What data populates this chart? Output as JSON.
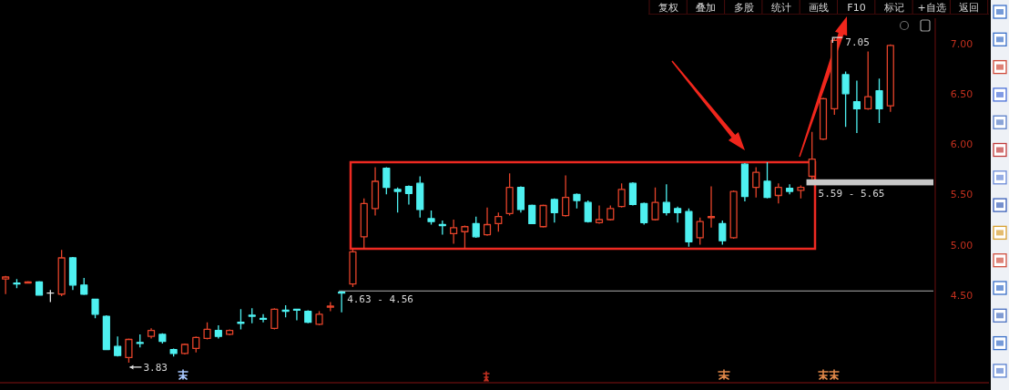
{
  "chart_data": {
    "type": "candlestick",
    "categories": [
      null,
      null,
      null,
      null,
      null,
      null,
      null,
      null,
      null,
      null,
      null,
      null,
      null,
      null,
      null,
      null,
      null,
      null,
      null,
      null,
      null,
      null,
      null,
      null,
      null,
      null,
      null,
      null,
      null,
      null,
      null,
      null,
      null,
      null,
      null,
      null,
      null,
      null,
      null,
      null,
      null,
      null,
      null,
      null,
      null,
      null,
      null,
      null,
      null,
      null,
      null,
      null,
      null,
      null,
      null,
      null,
      null,
      null,
      null,
      null,
      null,
      null,
      null,
      null,
      null,
      null,
      null,
      null,
      null,
      null,
      null,
      null,
      null,
      null,
      null,
      null,
      null,
      null,
      null,
      null
    ],
    "ohlc": [
      [
        4.66,
        4.69,
        4.51,
        4.68
      ],
      [
        4.62,
        4.66,
        4.57,
        4.61
      ],
      [
        4.62,
        4.64,
        4.62,
        4.63
      ],
      [
        4.63,
        4.64,
        4.5,
        4.5
      ],
      [
        4.52,
        4.55,
        4.43,
        4.52
      ],
      [
        4.51,
        4.95,
        4.49,
        4.87
      ],
      [
        4.87,
        4.88,
        4.55,
        4.6
      ],
      [
        4.6,
        4.67,
        4.5,
        4.51
      ],
      [
        4.46,
        4.46,
        4.27,
        4.31
      ],
      [
        4.29,
        4.3,
        3.96,
        3.96
      ],
      [
        3.99,
        4.09,
        3.89,
        3.9
      ],
      [
        3.88,
        4.07,
        3.83,
        4.06
      ],
      [
        4.03,
        4.11,
        3.98,
        4.02
      ],
      [
        4.09,
        4.17,
        4.07,
        4.15
      ],
      [
        4.11,
        4.12,
        4.02,
        4.04
      ],
      [
        3.96,
        3.97,
        3.89,
        3.92
      ],
      [
        3.92,
        4.02,
        3.91,
        4.01
      ],
      [
        3.97,
        4.09,
        3.93,
        4.08
      ],
      [
        4.07,
        4.23,
        4.06,
        4.16
      ],
      [
        4.15,
        4.2,
        4.07,
        4.09
      ],
      [
        4.11,
        4.16,
        4.1,
        4.15
      ],
      [
        4.23,
        4.36,
        4.16,
        4.22
      ],
      [
        4.3,
        4.37,
        4.22,
        4.29
      ],
      [
        4.27,
        4.31,
        4.23,
        4.26
      ],
      [
        4.17,
        4.37,
        4.16,
        4.36
      ],
      [
        4.35,
        4.4,
        4.28,
        4.34
      ],
      [
        4.36,
        4.36,
        4.25,
        4.35
      ],
      [
        4.34,
        4.35,
        4.22,
        4.23
      ],
      [
        4.21,
        4.34,
        4.2,
        4.31
      ],
      [
        4.38,
        4.43,
        4.34,
        4.39
      ],
      [
        4.53,
        4.54,
        4.33,
        4.52
      ],
      [
        4.61,
        4.96,
        4.58,
        4.93
      ],
      [
        5.08,
        5.46,
        4.96,
        5.41
      ],
      [
        5.36,
        5.77,
        5.29,
        5.63
      ],
      [
        5.76,
        5.77,
        5.5,
        5.57
      ],
      [
        5.55,
        5.57,
        5.32,
        5.53
      ],
      [
        5.58,
        5.59,
        5.4,
        5.51
      ],
      [
        5.61,
        5.68,
        5.27,
        5.35
      ],
      [
        5.26,
        5.34,
        5.2,
        5.23
      ],
      [
        5.2,
        5.24,
        5.1,
        5.19
      ],
      [
        5.11,
        5.25,
        5.01,
        5.17
      ],
      [
        5.13,
        5.19,
        4.96,
        5.18
      ],
      [
        5.21,
        5.28,
        5.07,
        5.08
      ],
      [
        5.1,
        5.37,
        5.09,
        5.2
      ],
      [
        5.21,
        5.32,
        5.13,
        5.28
      ],
      [
        5.31,
        5.71,
        5.29,
        5.57
      ],
      [
        5.57,
        5.58,
        5.32,
        5.35
      ],
      [
        5.39,
        5.4,
        5.21,
        5.21
      ],
      [
        5.18,
        5.4,
        5.17,
        5.39
      ],
      [
        5.45,
        5.46,
        5.22,
        5.32
      ],
      [
        5.29,
        5.69,
        5.28,
        5.47
      ],
      [
        5.5,
        5.51,
        5.36,
        5.44
      ],
      [
        5.42,
        5.44,
        5.22,
        5.23
      ],
      [
        5.22,
        5.39,
        5.21,
        5.25
      ],
      [
        5.25,
        5.39,
        5.24,
        5.36
      ],
      [
        5.38,
        5.61,
        5.37,
        5.55
      ],
      [
        5.61,
        5.62,
        5.39,
        5.4
      ],
      [
        5.41,
        5.42,
        5.2,
        5.22
      ],
      [
        5.25,
        5.57,
        5.24,
        5.42
      ],
      [
        5.42,
        5.6,
        5.29,
        5.32
      ],
      [
        5.36,
        5.38,
        5.22,
        5.32
      ],
      [
        5.33,
        5.36,
        4.98,
        5.03
      ],
      [
        5.07,
        5.27,
        5.0,
        5.23
      ],
      [
        5.27,
        5.58,
        5.17,
        5.28
      ],
      [
        5.21,
        5.24,
        5.0,
        5.04
      ],
      [
        5.07,
        5.54,
        5.06,
        5.53
      ],
      [
        5.8,
        5.81,
        5.43,
        5.48
      ],
      [
        5.57,
        5.77,
        5.47,
        5.72
      ],
      [
        5.63,
        5.82,
        5.46,
        5.47
      ],
      [
        5.49,
        5.61,
        5.41,
        5.57
      ],
      [
        5.56,
        5.6,
        5.5,
        5.53
      ],
      [
        5.54,
        5.59,
        5.46,
        5.57
      ],
      [
        5.68,
        6.12,
        5.65,
        5.85
      ],
      [
        6.05,
        6.46,
        6.04,
        6.45
      ],
      [
        6.35,
        7.05,
        6.29,
        7.03
      ],
      [
        6.69,
        6.72,
        6.17,
        6.5
      ],
      [
        6.42,
        6.63,
        6.11,
        6.35
      ],
      [
        6.35,
        6.92,
        6.34,
        6.47
      ],
      [
        6.53,
        6.65,
        6.21,
        6.35
      ],
      [
        6.38,
        6.99,
        6.32,
        6.98
      ]
    ],
    "colors": [
      "#e5432a",
      "#4ef0f0",
      "#e5432a",
      "#4ef0f0",
      "#e6e6e6",
      "#e5432a",
      "#4ef0f0",
      "#4ef0f0",
      "#4ef0f0",
      "#4ef0f0",
      "#4ef0f0",
      "#e5432a",
      "#4ef0f0",
      "#e5432a",
      "#4ef0f0",
      "#4ef0f0",
      "#e5432a",
      "#e5432a",
      "#e5432a",
      "#4ef0f0",
      "#e5432a",
      "#4ef0f0",
      "#4ef0f0",
      "#4ef0f0",
      "#e5432a",
      "#4ef0f0",
      "#4ef0f0",
      "#4ef0f0",
      "#e5432a",
      "#e5432a",
      "#4ef0f0",
      "#e5432a",
      "#e5432a",
      "#e5432a",
      "#4ef0f0",
      "#4ef0f0",
      "#4ef0f0",
      "#4ef0f0",
      "#4ef0f0",
      "#4ef0f0",
      "#e5432a",
      "#e5432a",
      "#4ef0f0",
      "#e5432a",
      "#e5432a",
      "#e5432a",
      "#4ef0f0",
      "#4ef0f0",
      "#e5432a",
      "#4ef0f0",
      "#e5432a",
      "#4ef0f0",
      "#4ef0f0",
      "#e5432a",
      "#e5432a",
      "#e5432a",
      "#4ef0f0",
      "#4ef0f0",
      "#e5432a",
      "#4ef0f0",
      "#4ef0f0",
      "#4ef0f0",
      "#e5432a",
      "#e5432a",
      "#4ef0f0",
      "#e5432a",
      "#4ef0f0",
      "#e5432a",
      "#4ef0f0",
      "#e5432a",
      "#4ef0f0",
      "#e5432a",
      "#e5432a",
      "#e5432a",
      "#e5432a",
      "#4ef0f0",
      "#4ef0f0",
      "#e5432a",
      "#4ef0f0",
      "#e5432a"
    ],
    "ylim": [
      3.63,
      7.25
    ],
    "yticks": [
      {
        "value": 4.5,
        "label": "4.50"
      },
      {
        "value": 5,
        "label": "5.00"
      },
      {
        "value": 5.5,
        "label": "5.50"
      },
      {
        "value": 6,
        "label": "6.00"
      },
      {
        "value": 6.5,
        "label": "6.50"
      },
      {
        "value": 7,
        "label": "7.00"
      }
    ],
    "tick_labels": "y",
    "ref_lines": [
      {
        "axis": "y",
        "value": 4.54,
        "color": "#8c8c8c"
      }
    ],
    "bands": [
      {
        "axis": "y",
        "from": 5.59,
        "to": 5.65,
        "label": "5.59 - 5.65",
        "color": "#c8c8c8"
      }
    ],
    "annotations": [
      "复权",
      "叠加",
      "多股",
      "统计",
      "画线",
      "F10",
      "标记",
      "+自选",
      "返回",
      "3.83",
      "7.05",
      "4.63 - 4.56"
    ]
  }
}
